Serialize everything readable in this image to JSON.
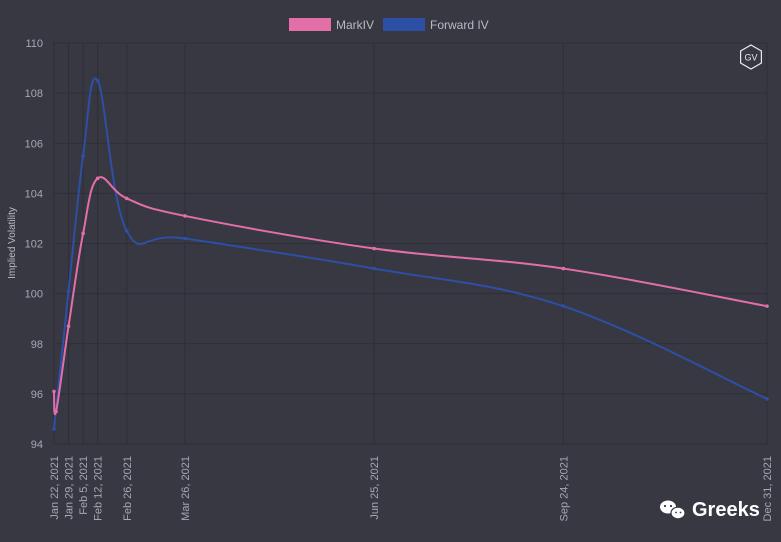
{
  "chart_data": {
    "type": "line",
    "title": "",
    "ylabel": "Implied Volatility",
    "xlabel": "",
    "ylim": [
      94,
      110
    ],
    "y_ticks": [
      94,
      96,
      98,
      100,
      102,
      104,
      106,
      108,
      110
    ],
    "x_tick_labels": [
      "Jan 22, 2021",
      "Jan 29, 2021",
      "Feb 5, 2021",
      "Feb 12, 2021",
      "Feb 26, 2021",
      "Mar 26, 2021",
      "Jun 25, 2021",
      "Sep 24, 2021",
      "Dec 31, 2021"
    ],
    "x_tick_dates": [
      "2021-01-22",
      "2021-01-29",
      "2021-02-05",
      "2021-02-12",
      "2021-02-26",
      "2021-03-26",
      "2021-06-25",
      "2021-09-24",
      "2021-12-31"
    ],
    "x_range": [
      "2021-01-22",
      "2021-12-31"
    ],
    "grid": true,
    "legend_position": "top-center",
    "series": [
      {
        "name": "MarkIV",
        "color": "#e36fa8",
        "points": [
          [
            "2021-01-22",
            96.1
          ],
          [
            "2021-01-23",
            95.3
          ],
          [
            "2021-01-29",
            98.7
          ],
          [
            "2021-02-05",
            102.4
          ],
          [
            "2021-02-12",
            104.6
          ],
          [
            "2021-02-26",
            103.8
          ],
          [
            "2021-03-26",
            103.1
          ],
          [
            "2021-06-25",
            101.8
          ],
          [
            "2021-09-24",
            101.0
          ],
          [
            "2021-12-31",
            99.5
          ]
        ]
      },
      {
        "name": "Forward IV",
        "color": "#2d4fa6",
        "points": [
          [
            "2021-01-22",
            94.6
          ],
          [
            "2021-01-29",
            100.1
          ],
          [
            "2021-02-05",
            105.5
          ],
          [
            "2021-02-12",
            108.5
          ],
          [
            "2021-02-26",
            102.5
          ],
          [
            "2021-03-26",
            102.2
          ],
          [
            "2021-06-25",
            101.0
          ],
          [
            "2021-09-24",
            99.5
          ],
          [
            "2021-12-31",
            95.8
          ]
        ]
      }
    ]
  },
  "logo": {
    "badge": "GV"
  },
  "brand": {
    "name": "Greeks"
  }
}
